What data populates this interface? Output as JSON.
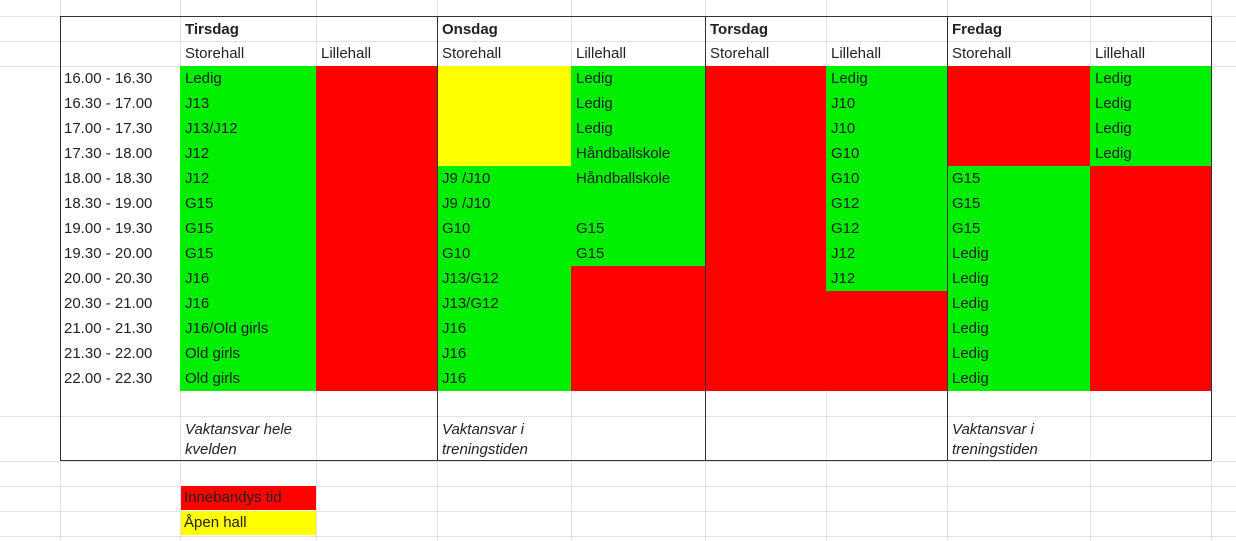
{
  "days": [
    {
      "name": "Tirsdag",
      "halls": [
        "Storehall",
        "Lillehall"
      ]
    },
    {
      "name": "Onsdag",
      "halls": [
        "Storehall",
        "Lillehall"
      ]
    },
    {
      "name": "Torsdag",
      "halls": [
        "Storehall",
        "Lillehall"
      ]
    },
    {
      "name": "Fredag",
      "halls": [
        "Storehall",
        "Lillehall"
      ]
    }
  ],
  "times": [
    "16.00 - 16.30",
    "16.30 - 17.00",
    "17.00 - 17.30",
    "17.30 - 18.00",
    "18.00 - 18.30",
    "18.30 - 19.00",
    "19.00 - 19.30",
    "19.30 - 20.00",
    "20.00 - 20.30",
    "20.30 - 21.00",
    "21.00 - 21.30",
    "21.30 - 22.00",
    "22.00 - 22.30"
  ],
  "tirsdag_storehall": [
    "Ledig",
    "J13",
    "J13/J12",
    "J12",
    "J12",
    "G15",
    "G15",
    "G15",
    "J16",
    "J16",
    "J16/Old girls",
    "Old girls",
    "Old girls"
  ],
  "onsdag_storehall": [
    "",
    "",
    "",
    "",
    "J9 /J10",
    "J9 /J10",
    "G10",
    "G10",
    "J13/G12",
    "J13/G12",
    "J16",
    "J16",
    "J16"
  ],
  "onsdag_lillehall": [
    "Ledig",
    "Ledig",
    "Ledig",
    "Håndballskole",
    "Håndballskole",
    "",
    "G15",
    "G15"
  ],
  "torsdag_lillehall": [
    "Ledig",
    "J10",
    "J10",
    "G10",
    "G10",
    "G12",
    "G12",
    "J12",
    "J12"
  ],
  "fredag_storehall": [
    "",
    "",
    "",
    "",
    "G15",
    "G15",
    "G15",
    "Ledig",
    "Ledig",
    "Ledig",
    "Ledig",
    "Ledig",
    "Ledig"
  ],
  "fredag_lillehall": [
    "Ledig",
    "Ledig",
    "Ledig",
    "Ledig"
  ],
  "notes": {
    "tirsdag": "Vaktansvar hele kvelden",
    "onsdag": "Vaktansvar i treningstiden",
    "fredag": "Vaktansvar i treningstiden"
  },
  "legend": {
    "innebandy": "Innebandys tid",
    "open": "Åpen hall"
  },
  "colors": {
    "ledig_green": "#00ee00",
    "innebandy_red": "#ff0000",
    "open_yellow": "#ffff00"
  }
}
